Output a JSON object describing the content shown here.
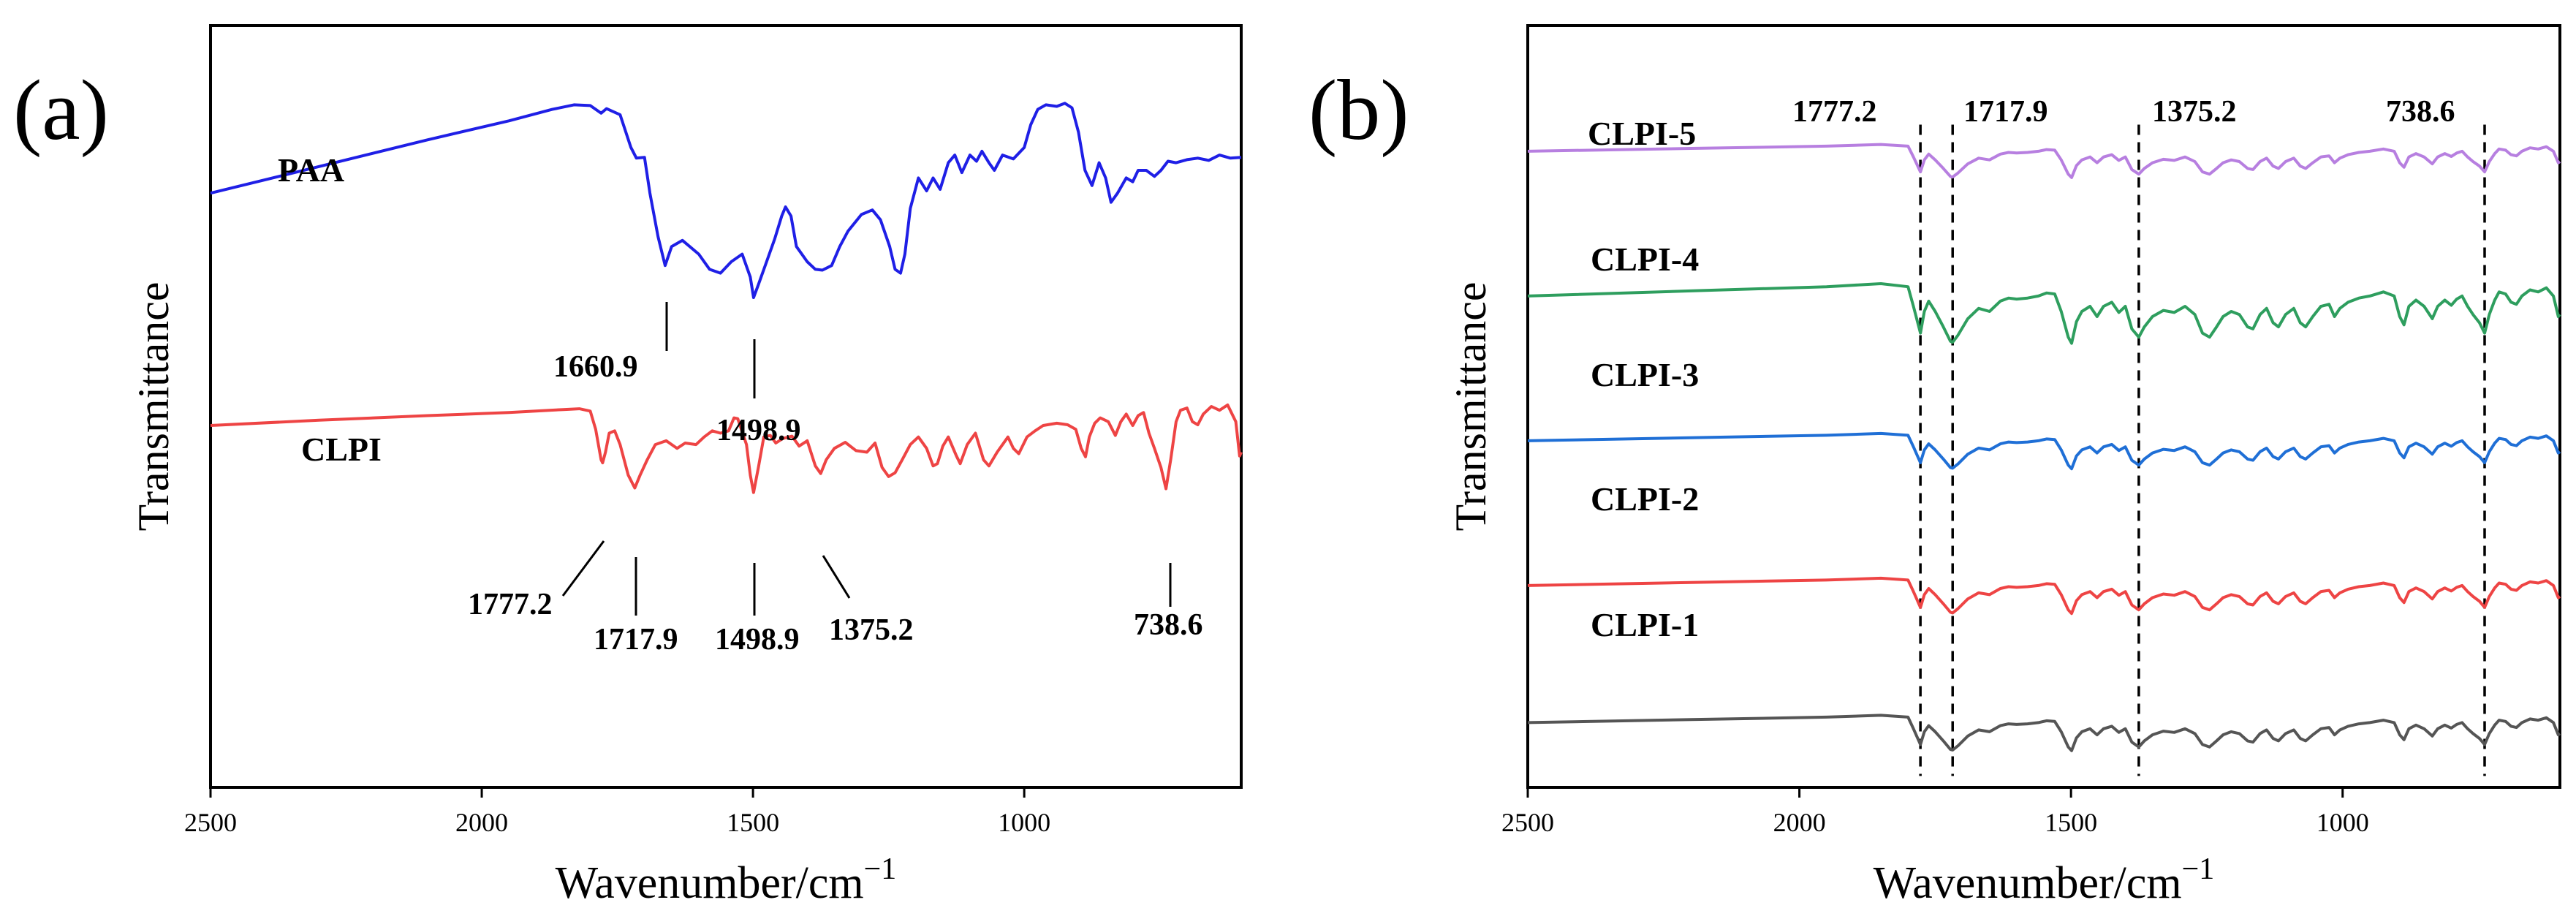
{
  "chart_data": [
    {
      "type": "line",
      "panel_label": "(a)",
      "xlabel": "Wavenumber/cm",
      "xlabel_sup": "−1",
      "ylabel": "Transmittance",
      "xlim": [
        2500,
        600
      ],
      "ylim": [
        0,
        100
      ],
      "xticks": [
        2500,
        2000,
        1500,
        1000
      ],
      "grid": false,
      "legend": "none",
      "series": [
        {
          "name": "PAA",
          "color": "#1f1fe6",
          "points": [
            [
              2500,
              78
            ],
            [
              2300,
              81.5
            ],
            [
              2100,
              85
            ],
            [
              1950,
              87.5
            ],
            [
              1870,
              89
            ],
            [
              1830,
              89.6
            ],
            [
              1800,
              89.5
            ],
            [
              1780,
              88.5
            ],
            [
              1770,
              89.1
            ],
            [
              1745,
              88.3
            ],
            [
              1725,
              84
            ],
            [
              1715,
              82.6
            ],
            [
              1700,
              82.7
            ],
            [
              1690,
              78
            ],
            [
              1675,
              72.3
            ],
            [
              1662,
              68.5
            ],
            [
              1650,
              71
            ],
            [
              1630,
              71.8
            ],
            [
              1600,
              70
            ],
            [
              1580,
              68
            ],
            [
              1560,
              67.5
            ],
            [
              1540,
              69
            ],
            [
              1520,
              70
            ],
            [
              1505,
              67
            ],
            [
              1498.9,
              64.3
            ],
            [
              1490,
              66
            ],
            [
              1475,
              69
            ],
            [
              1460,
              72
            ],
            [
              1447,
              75
            ],
            [
              1440,
              76.2
            ],
            [
              1430,
              75
            ],
            [
              1420,
              71
            ],
            [
              1400,
              69
            ],
            [
              1385,
              68
            ],
            [
              1372,
              67.9
            ],
            [
              1355,
              68.5
            ],
            [
              1340,
              71
            ],
            [
              1325,
              73
            ],
            [
              1300,
              75.2
            ],
            [
              1280,
              75.8
            ],
            [
              1265,
              74.5
            ],
            [
              1248,
              71
            ],
            [
              1238,
              68
            ],
            [
              1228,
              67.5
            ],
            [
              1220,
              70
            ],
            [
              1210,
              76
            ],
            [
              1195,
              80
            ],
            [
              1180,
              78.3
            ],
            [
              1168,
              80
            ],
            [
              1155,
              78.5
            ],
            [
              1140,
              82
            ],
            [
              1128,
              83
            ],
            [
              1115,
              80.7
            ],
            [
              1100,
              83
            ],
            [
              1088,
              82.2
            ],
            [
              1078,
              83.5
            ],
            [
              1065,
              82
            ],
            [
              1055,
              81
            ],
            [
              1040,
              83
            ],
            [
              1020,
              82.5
            ],
            [
              1000,
              84
            ],
            [
              988,
              87
            ],
            [
              975,
              89
            ],
            [
              960,
              89.6
            ],
            [
              940,
              89.4
            ],
            [
              925,
              89.8
            ],
            [
              912,
              89.2
            ],
            [
              900,
              86
            ],
            [
              888,
              81
            ],
            [
              875,
              79
            ],
            [
              862,
              82
            ],
            [
              850,
              80
            ],
            [
              840,
              76.8
            ],
            [
              828,
              78
            ],
            [
              812,
              80
            ],
            [
              800,
              79.5
            ],
            [
              790,
              81
            ],
            [
              775,
              81
            ],
            [
              760,
              80.2
            ],
            [
              748,
              81
            ],
            [
              735,
              82.2
            ],
            [
              720,
              82
            ],
            [
              700,
              82.4
            ],
            [
              680,
              82.6
            ],
            [
              660,
              82.3
            ],
            [
              640,
              83
            ],
            [
              620,
              82.6
            ],
            [
              600,
              82.7
            ]
          ]
        },
        {
          "name": "CLPI",
          "color": "#ee4444",
          "points": [
            [
              2500,
              47.5
            ],
            [
              2300,
              48.2
            ],
            [
              2100,
              48.8
            ],
            [
              1950,
              49.2
            ],
            [
              1850,
              49.6
            ],
            [
              1820,
              49.7
            ],
            [
              1800,
              49.4
            ],
            [
              1790,
              47
            ],
            [
              1780,
              43
            ],
            [
              1777.2,
              42.6
            ],
            [
              1772,
              44
            ],
            [
              1765,
              46.5
            ],
            [
              1755,
              46.8
            ],
            [
              1745,
              45
            ],
            [
              1730,
              41
            ],
            [
              1717.9,
              39.3
            ],
            [
              1708,
              41
            ],
            [
              1695,
              43
            ],
            [
              1680,
              45
            ],
            [
              1660,
              45.5
            ],
            [
              1640,
              44.5
            ],
            [
              1625,
              45.2
            ],
            [
              1605,
              45
            ],
            [
              1590,
              46
            ],
            [
              1575,
              46.8
            ],
            [
              1560,
              46.5
            ],
            [
              1545,
              46.8
            ],
            [
              1535,
              48.5
            ],
            [
              1528,
              48.4
            ],
            [
              1512,
              45
            ],
            [
              1505,
              41
            ],
            [
              1498.9,
              38.7
            ],
            [
              1490,
              42
            ],
            [
              1480,
              46
            ],
            [
              1468,
              46.2
            ],
            [
              1458,
              45.2
            ],
            [
              1445,
              45.8
            ],
            [
              1428,
              46.1
            ],
            [
              1415,
              44.8
            ],
            [
              1400,
              45.5
            ],
            [
              1385,
              42.2
            ],
            [
              1375.2,
              41.2
            ],
            [
              1365,
              43
            ],
            [
              1350,
              44.5
            ],
            [
              1330,
              45.3
            ],
            [
              1310,
              44.2
            ],
            [
              1290,
              44
            ],
            [
              1275,
              45.2
            ],
            [
              1262,
              42
            ],
            [
              1250,
              40.8
            ],
            [
              1238,
              41.3
            ],
            [
              1225,
              43
            ],
            [
              1210,
              45
            ],
            [
              1195,
              46
            ],
            [
              1180,
              44.5
            ],
            [
              1168,
              42.2
            ],
            [
              1160,
              42.5
            ],
            [
              1150,
              44.8
            ],
            [
              1140,
              46
            ],
            [
              1125,
              43.5
            ],
            [
              1118,
              42.5
            ],
            [
              1105,
              45
            ],
            [
              1090,
              46.5
            ],
            [
              1075,
              43
            ],
            [
              1065,
              42.2
            ],
            [
              1050,
              44
            ],
            [
              1030,
              46
            ],
            [
              1020,
              44.5
            ],
            [
              1010,
              43.8
            ],
            [
              995,
              46
            ],
            [
              980,
              46.8
            ],
            [
              965,
              47.5
            ],
            [
              940,
              47.8
            ],
            [
              920,
              47.6
            ],
            [
              905,
              47
            ],
            [
              895,
              44.5
            ],
            [
              887,
              43.4
            ],
            [
              880,
              46
            ],
            [
              870,
              47.8
            ],
            [
              860,
              48.5
            ],
            [
              845,
              48
            ],
            [
              832,
              46.2
            ],
            [
              822,
              48
            ],
            [
              812,
              49
            ],
            [
              800,
              47.5
            ],
            [
              790,
              48.8
            ],
            [
              780,
              49.2
            ],
            [
              770,
              46.5
            ],
            [
              760,
              44.5
            ],
            [
              748,
              42
            ],
            [
              738.6,
              39.2
            ],
            [
              730,
              43
            ],
            [
              720,
              48
            ],
            [
              712,
              49.5
            ],
            [
              700,
              49.8
            ],
            [
              690,
              48
            ],
            [
              680,
              47.6
            ],
            [
              670,
              49
            ],
            [
              655,
              50
            ],
            [
              640,
              49.5
            ],
            [
              625,
              50.2
            ],
            [
              610,
              48
            ],
            [
              603,
              43.5
            ],
            [
              600,
              44
            ]
          ]
        }
      ],
      "series_labels": [
        "PAA",
        "CLPI"
      ],
      "peak_labels": [
        "1660.9",
        "1498.9",
        "1777.2",
        "1717.9",
        "1498.9",
        "1375.2",
        "738.6"
      ]
    },
    {
      "type": "line",
      "panel_label": "(b)",
      "xlabel": "Wavenumber/cm",
      "xlabel_sup": "−1",
      "ylabel": "Transmittance",
      "xlim": [
        2500,
        600
      ],
      "ylim": [
        0,
        100
      ],
      "xticks": [
        2500,
        2000,
        1500,
        1000
      ],
      "grid": false,
      "legend": "none",
      "reference_lines": [
        1777.2,
        1717.9,
        1375.2,
        738.6
      ],
      "reference_labels": [
        "1777.2",
        "1717.9",
        "1375.2",
        "738.6"
      ],
      "series": [
        {
          "name": "CLPI-5",
          "color": "#b77fe0",
          "offset": 83.5,
          "depth": 0.75
        },
        {
          "name": "CLPI-4",
          "color": "#2e9e5e",
          "offset": 64.5,
          "depth": 1.35
        },
        {
          "name": "CLPI-3",
          "color": "#1f6fd6",
          "offset": 45.5,
          "depth": 0.8
        },
        {
          "name": "CLPI-2",
          "color": "#ee4444",
          "offset": 26.5,
          "depth": 0.8
        },
        {
          "name": "CLPI-1",
          "color": "#555555",
          "offset": 8.5,
          "depth": 0.8
        }
      ],
      "base_profile": [
        [
          2500,
          0
        ],
        [
          2200,
          0.5
        ],
        [
          1950,
          0.9
        ],
        [
          1850,
          1.2
        ],
        [
          1800,
          0.9
        ],
        [
          1790,
          -1
        ],
        [
          1777.2,
          -3.6
        ],
        [
          1770,
          -1.5
        ],
        [
          1762,
          -0.5
        ],
        [
          1750,
          -1.5
        ],
        [
          1735,
          -3
        ],
        [
          1722,
          -4.4
        ],
        [
          1717.9,
          -4.5
        ],
        [
          1708,
          -3.8
        ],
        [
          1690,
          -2.2
        ],
        [
          1670,
          -1.2
        ],
        [
          1650,
          -1.5
        ],
        [
          1630,
          -0.5
        ],
        [
          1615,
          -0.2
        ],
        [
          1600,
          -0.3
        ],
        [
          1580,
          -0.2
        ],
        [
          1560,
          0
        ],
        [
          1545,
          0.3
        ],
        [
          1530,
          0.2
        ],
        [
          1518,
          -1.5
        ],
        [
          1505,
          -4
        ],
        [
          1498.9,
          -4.6
        ],
        [
          1490,
          -2.5
        ],
        [
          1480,
          -1.5
        ],
        [
          1465,
          -1
        ],
        [
          1452,
          -2
        ],
        [
          1440,
          -1
        ],
        [
          1425,
          -0.6
        ],
        [
          1412,
          -1.6
        ],
        [
          1400,
          -1
        ],
        [
          1388,
          -3.2
        ],
        [
          1375.2,
          -4
        ],
        [
          1365,
          -3
        ],
        [
          1350,
          -2
        ],
        [
          1330,
          -1.4
        ],
        [
          1310,
          -1.6
        ],
        [
          1290,
          -1
        ],
        [
          1272,
          -1.8
        ],
        [
          1258,
          -3.6
        ],
        [
          1245,
          -4
        ],
        [
          1232,
          -3
        ],
        [
          1220,
          -2
        ],
        [
          1205,
          -1.5
        ],
        [
          1190,
          -1.8
        ],
        [
          1175,
          -3
        ],
        [
          1165,
          -3.2
        ],
        [
          1152,
          -1.8
        ],
        [
          1140,
          -1.2
        ],
        [
          1128,
          -2.6
        ],
        [
          1118,
          -3
        ],
        [
          1105,
          -1.8
        ],
        [
          1090,
          -1.2
        ],
        [
          1078,
          -2.6
        ],
        [
          1068,
          -3
        ],
        [
          1055,
          -2
        ],
        [
          1040,
          -1
        ],
        [
          1025,
          -0.8
        ],
        [
          1015,
          -2
        ],
        [
          1005,
          -1.2
        ],
        [
          990,
          -0.6
        ],
        [
          970,
          -0.2
        ],
        [
          950,
          0
        ],
        [
          925,
          0.4
        ],
        [
          905,
          0
        ],
        [
          895,
          -2
        ],
        [
          887,
          -2.8
        ],
        [
          878,
          -1
        ],
        [
          865,
          -0.4
        ],
        [
          850,
          -1
        ],
        [
          835,
          -2.2
        ],
        [
          825,
          -1
        ],
        [
          812,
          -0.4
        ],
        [
          800,
          -0.9
        ],
        [
          790,
          -0.3
        ],
        [
          780,
          0
        ],
        [
          770,
          -1
        ],
        [
          760,
          -1.8
        ],
        [
          748,
          -2.6
        ],
        [
          738.6,
          -3.6
        ],
        [
          730,
          -1.8
        ],
        [
          720,
          -0.4
        ],
        [
          712,
          0.4
        ],
        [
          700,
          0.2
        ],
        [
          690,
          -0.6
        ],
        [
          680,
          -0.8
        ],
        [
          670,
          0
        ],
        [
          655,
          0.6
        ],
        [
          640,
          0.4
        ],
        [
          625,
          0.8
        ],
        [
          612,
          0
        ],
        [
          603,
          -2
        ],
        [
          600,
          -1.8
        ]
      ]
    }
  ]
}
